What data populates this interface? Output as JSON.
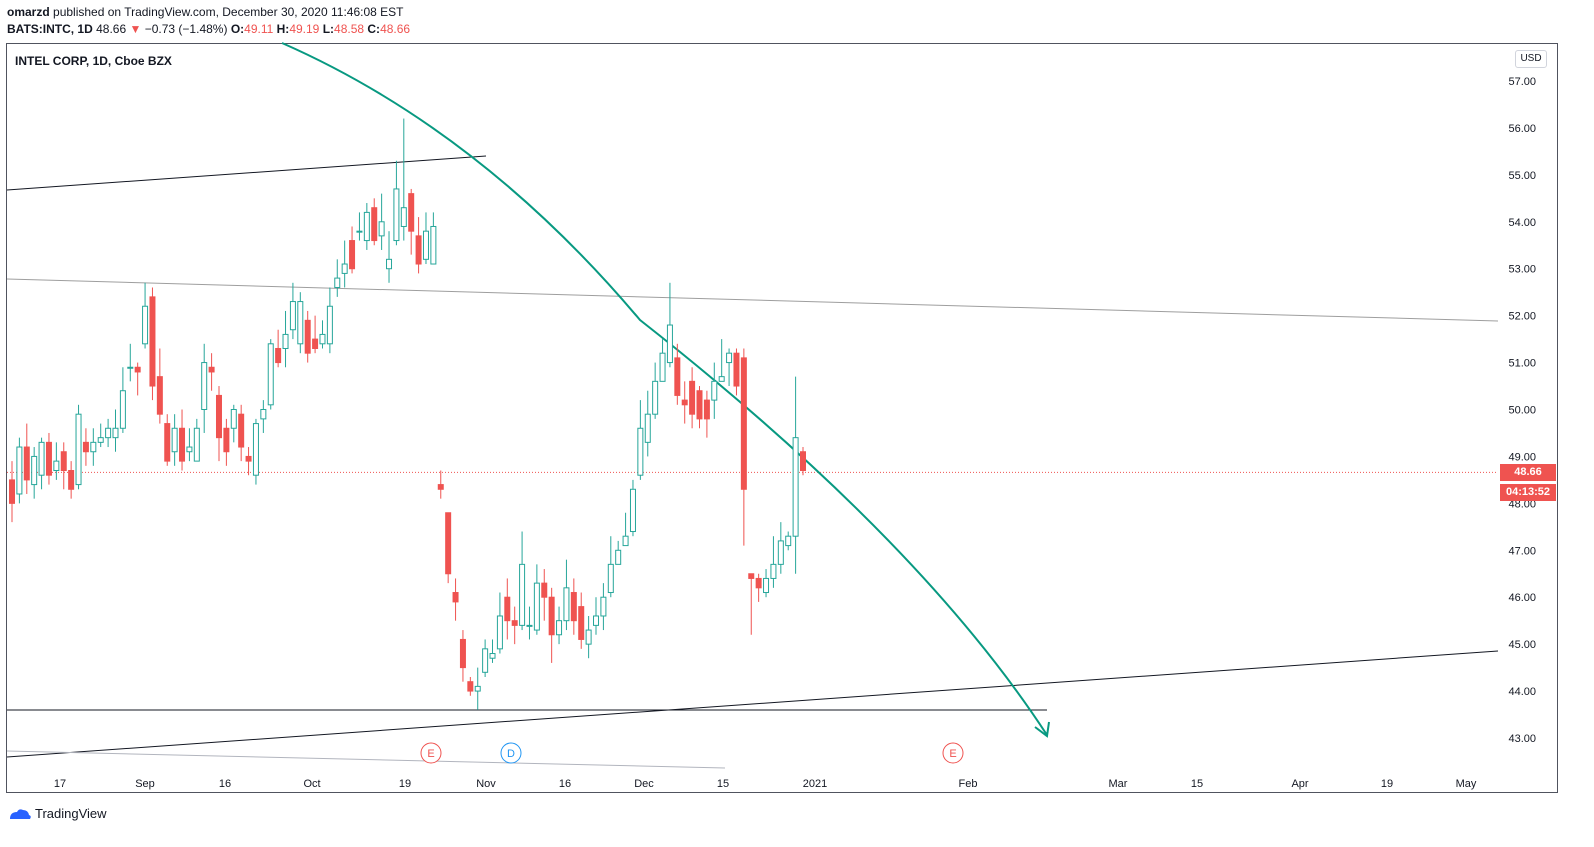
{
  "header": {
    "author": "omarzd",
    "published": "published on TradingView.com, December 30, 2020 11:46:08 EST",
    "symbol": "BATS:INTC, 1D",
    "price": "48.66",
    "down_arrow": "▼",
    "change": "−0.73 (−1.48%)",
    "o_label": "O:",
    "o_val": "49.11",
    "h_label": "H:",
    "h_val": "49.19",
    "l_label": "L:",
    "l_val": "48.58",
    "c_label": "C:",
    "c_val": "48.66"
  },
  "legend": "INTEL CORP, 1D, Cboe BZX",
  "currency": "USD",
  "last_price_tag": "48.66",
  "countdown_tag": "04:13:52",
  "brand": "TradingView",
  "colors": {
    "up": "#26a69a",
    "down": "#ef5350",
    "arrow": "#089981"
  },
  "chart_data": {
    "type": "candlestick",
    "title": "INTEL CORP, 1D, Cboe BZX",
    "ylim": [
      42.5,
      57.4
    ],
    "y_ticks": [
      "43.00",
      "44.00",
      "45.00",
      "46.00",
      "47.00",
      "48.00",
      "49.00",
      "50.00",
      "51.00",
      "52.00",
      "53.00",
      "54.00",
      "55.00",
      "56.00",
      "57.00"
    ],
    "x_ticks": [
      "17",
      "Sep",
      "16",
      "Oct",
      "19",
      "Nov",
      "16",
      "Dec",
      "15",
      "2021",
      "Feb",
      "Mar",
      "15",
      "Apr",
      "19",
      "May"
    ],
    "last_price": 48.66,
    "events": [
      {
        "label": "E",
        "kind": "earnings",
        "date": "Oct 22"
      },
      {
        "label": "D",
        "kind": "dividend",
        "date": "Nov 5"
      },
      {
        "label": "E",
        "kind": "earnings",
        "date": "Jan 21"
      }
    ],
    "candles": [
      [
        48.5,
        48.0,
        48.9,
        47.6
      ],
      [
        48.2,
        49.2,
        49.4,
        48.0
      ],
      [
        49.2,
        48.5,
        49.7,
        48.2
      ],
      [
        48.4,
        49.0,
        49.2,
        48.1
      ],
      [
        48.6,
        49.3,
        49.4,
        48.3
      ],
      [
        49.3,
        48.6,
        49.5,
        48.4
      ],
      [
        48.7,
        48.9,
        49.3,
        48.5
      ],
      [
        49.1,
        48.7,
        49.3,
        48.3
      ],
      [
        48.7,
        48.3,
        48.9,
        48.1
      ],
      [
        48.4,
        49.9,
        50.1,
        48.3
      ],
      [
        49.3,
        49.1,
        49.6,
        48.8
      ],
      [
        49.1,
        49.3,
        49.6,
        48.8
      ],
      [
        49.3,
        49.4,
        49.7,
        49.2
      ],
      [
        49.4,
        49.6,
        49.8,
        49.2
      ],
      [
        49.4,
        49.6,
        50.0,
        49.1
      ],
      [
        49.6,
        50.4,
        50.9,
        49.5
      ],
      [
        50.9,
        50.9,
        51.4,
        50.6
      ],
      [
        50.9,
        50.8,
        51.0,
        50.3
      ],
      [
        51.4,
        52.2,
        52.7,
        51.3
      ],
      [
        52.4,
        50.5,
        52.6,
        50.2
      ],
      [
        50.7,
        49.9,
        51.3,
        49.7
      ],
      [
        49.7,
        48.9,
        49.9,
        48.8
      ],
      [
        49.1,
        49.6,
        49.9,
        48.8
      ],
      [
        49.6,
        48.9,
        50.0,
        48.7
      ],
      [
        49.1,
        49.2,
        49.6,
        48.9
      ],
      [
        48.9,
        49.6,
        49.8,
        48.9
      ],
      [
        50.0,
        51.0,
        51.4,
        49.5
      ],
      [
        50.9,
        50.8,
        51.2,
        50.4
      ],
      [
        50.3,
        49.4,
        50.5,
        48.9
      ],
      [
        49.6,
        49.1,
        49.8,
        48.8
      ],
      [
        49.6,
        50.0,
        50.1,
        49.3
      ],
      [
        49.9,
        49.2,
        50.1,
        48.9
      ],
      [
        49.0,
        48.9,
        49.2,
        48.6
      ],
      [
        48.6,
        49.7,
        49.8,
        48.4
      ],
      [
        49.8,
        50.0,
        50.2,
        49.5
      ],
      [
        50.1,
        51.4,
        51.5,
        50.0
      ],
      [
        51.3,
        51.0,
        51.7,
        50.9
      ],
      [
        51.3,
        51.6,
        52.1,
        50.9
      ],
      [
        51.7,
        52.3,
        52.7,
        51.5
      ],
      [
        51.4,
        52.3,
        52.5,
        51.2
      ],
      [
        51.9,
        51.2,
        52.1,
        51.0
      ],
      [
        51.5,
        51.3,
        52.0,
        51.2
      ],
      [
        51.4,
        51.6,
        51.9,
        51.3
      ],
      [
        51.4,
        52.2,
        52.6,
        51.2
      ],
      [
        52.6,
        52.8,
        53.2,
        52.4
      ],
      [
        52.9,
        53.1,
        53.6,
        52.6
      ],
      [
        53.6,
        53.0,
        53.9,
        52.9
      ],
      [
        53.8,
        53.8,
        54.2,
        53.6
      ],
      [
        53.6,
        54.2,
        54.4,
        53.4
      ],
      [
        54.3,
        53.6,
        54.5,
        53.5
      ],
      [
        53.7,
        54.0,
        54.6,
        53.4
      ],
      [
        53.0,
        53.2,
        53.8,
        52.7
      ],
      [
        53.6,
        54.7,
        55.3,
        53.5
      ],
      [
        53.9,
        54.3,
        56.2,
        53.6
      ],
      [
        54.6,
        53.8,
        54.7,
        53.3
      ],
      [
        53.7,
        53.1,
        54.1,
        52.9
      ],
      [
        53.2,
        53.8,
        54.2,
        53.1
      ],
      [
        53.1,
        53.9,
        54.2,
        53.1
      ],
      [
        48.4,
        48.3,
        48.7,
        48.1
      ],
      [
        47.8,
        46.5,
        47.8,
        46.3
      ],
      [
        46.1,
        45.9,
        46.4,
        45.5
      ],
      [
        45.1,
        44.5,
        45.3,
        44.2
      ],
      [
        44.2,
        44.0,
        44.3,
        43.9
      ],
      [
        44.0,
        44.1,
        44.5,
        43.6
      ],
      [
        44.4,
        44.9,
        45.1,
        44.3
      ],
      [
        44.7,
        44.8,
        45.1,
        44.6
      ],
      [
        44.9,
        45.6,
        46.1,
        44.8
      ],
      [
        46.0,
        45.5,
        46.4,
        45.1
      ],
      [
        45.5,
        45.4,
        45.8,
        45.0
      ],
      [
        45.4,
        46.7,
        47.4,
        45.3
      ],
      [
        45.4,
        45.4,
        45.8,
        45.1
      ],
      [
        45.3,
        46.3,
        46.7,
        45.2
      ],
      [
        46.3,
        46.0,
        46.6,
        45.5
      ],
      [
        46.0,
        45.2,
        46.2,
        44.6
      ],
      [
        45.2,
        45.5,
        45.8,
        45.0
      ],
      [
        45.5,
        46.2,
        46.8,
        45.3
      ],
      [
        46.1,
        45.5,
        46.4,
        45.2
      ],
      [
        45.8,
        45.1,
        46.1,
        44.9
      ],
      [
        45.0,
        45.3,
        45.6,
        44.7
      ],
      [
        45.4,
        45.6,
        46.0,
        45.2
      ],
      [
        45.6,
        46.0,
        46.3,
        45.3
      ],
      [
        46.1,
        46.7,
        47.3,
        46.0
      ],
      [
        46.7,
        47.0,
        47.2,
        46.7
      ],
      [
        47.1,
        47.3,
        47.8,
        47.1
      ],
      [
        47.4,
        48.3,
        48.5,
        47.3
      ],
      [
        48.6,
        49.6,
        50.2,
        48.5
      ],
      [
        49.3,
        49.9,
        50.4,
        49.0
      ],
      [
        49.9,
        50.6,
        51.0,
        49.8
      ],
      [
        50.6,
        51.2,
        51.5,
        50.6
      ],
      [
        51.0,
        51.8,
        52.7,
        50.9
      ],
      [
        51.1,
        50.3,
        51.4,
        50.1
      ],
      [
        50.2,
        50.1,
        50.6,
        49.7
      ],
      [
        50.6,
        49.9,
        50.9,
        49.6
      ],
      [
        50.4,
        49.8,
        50.5,
        49.6
      ],
      [
        50.2,
        49.8,
        50.4,
        49.4
      ],
      [
        50.2,
        50.6,
        51.0,
        49.8
      ],
      [
        50.6,
        50.7,
        51.5,
        50.6
      ],
      [
        51.0,
        51.2,
        51.3,
        50.5
      ],
      [
        51.2,
        50.5,
        51.3,
        50.3
      ],
      [
        51.1,
        48.3,
        51.3,
        47.1
      ],
      [
        46.5,
        46.4,
        46.5,
        45.2
      ],
      [
        46.4,
        46.2,
        46.5,
        45.9
      ],
      [
        46.1,
        46.4,
        46.6,
        46.0
      ],
      [
        46.4,
        46.7,
        47.3,
        46.2
      ],
      [
        46.7,
        47.2,
        47.6,
        46.5
      ],
      [
        47.1,
        47.3,
        47.4,
        47.0
      ],
      [
        47.3,
        49.4,
        50.7,
        46.5
      ],
      [
        49.1,
        48.7,
        49.2,
        48.6
      ]
    ]
  }
}
